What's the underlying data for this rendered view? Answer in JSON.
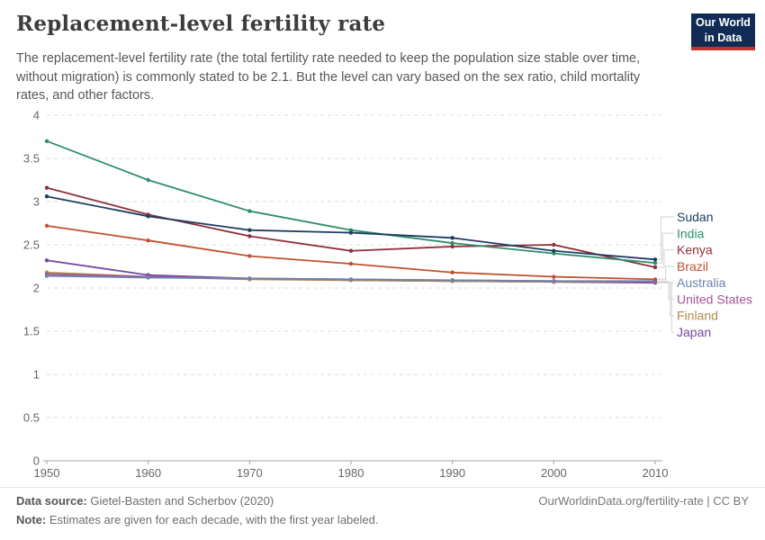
{
  "header": {
    "title": "Replacement-level fertility rate",
    "subtitle": "The replacement-level fertility rate (the total fertility rate needed to keep the population size stable over time, without migration) is commonly stated to be 2.1. But the level can vary based on the sex ratio, child mortality rates, and other factors.",
    "logo": {
      "line1": "Our World",
      "line2": "in Data",
      "bg_color": "#102C54",
      "stripe_color": "#C0342E"
    }
  },
  "chart_data": {
    "type": "line",
    "title": "Replacement-level fertility rate",
    "xlabel": "",
    "ylabel": "",
    "x": [
      1950,
      1960,
      1970,
      1980,
      1990,
      2000,
      2010
    ],
    "x_tick_labels": [
      "1950",
      "1960",
      "1970",
      "1980",
      "1990",
      "2000",
      "2010"
    ],
    "y_ticks": [
      0,
      0.5,
      1,
      1.5,
      2,
      2.5,
      3,
      3.5,
      4
    ],
    "ylim": [
      0,
      4
    ],
    "xlim": [
      1950,
      2010
    ],
    "grid": "horizontal-dashed",
    "legend_position": "labels-at-line-ends-right",
    "series": [
      {
        "name": "Sudan",
        "color": "#1D3D63",
        "values": [
          3.06,
          2.83,
          2.67,
          2.64,
          2.58,
          2.43,
          2.33
        ]
      },
      {
        "name": "India",
        "color": "#2F8E68",
        "values": [
          3.7,
          3.25,
          2.89,
          2.67,
          2.52,
          2.4,
          2.29
        ]
      },
      {
        "name": "Kenya",
        "color": "#8E3039",
        "values": [
          3.16,
          2.85,
          2.6,
          2.43,
          2.48,
          2.5,
          2.24
        ]
      },
      {
        "name": "Brazil",
        "color": "#C0512F",
        "values": [
          2.72,
          2.55,
          2.37,
          2.28,
          2.18,
          2.13,
          2.1
        ]
      },
      {
        "name": "Australia",
        "color": "#6C83AE",
        "values": [
          2.14,
          2.12,
          2.11,
          2.1,
          2.09,
          2.08,
          2.08
        ]
      },
      {
        "name": "United States",
        "color": "#A2559C",
        "values": [
          2.16,
          2.13,
          2.11,
          2.1,
          2.09,
          2.08,
          2.07
        ]
      },
      {
        "name": "Finland",
        "color": "#B38A4B",
        "values": [
          2.18,
          2.13,
          2.1,
          2.09,
          2.08,
          2.07,
          2.07
        ]
      },
      {
        "name": "Japan",
        "color": "#7347A2",
        "values": [
          2.32,
          2.15,
          2.11,
          2.09,
          2.08,
          2.07,
          2.06
        ]
      }
    ],
    "style": {
      "grid_color": "#DCDCDC",
      "axis_color": "#A0A0A0",
      "tick_label_color": "#666666",
      "connector_color": "#D9D9D9"
    }
  },
  "footer": {
    "data_source_label": "Data source:",
    "data_source_value": " Gietel-Basten and Scherbov (2020)",
    "note_label": "Note:",
    "note_value": " Estimates are given for each decade, with the first year labeled.",
    "link": "OurWorldinData.org/fertility-rate | CC BY"
  }
}
